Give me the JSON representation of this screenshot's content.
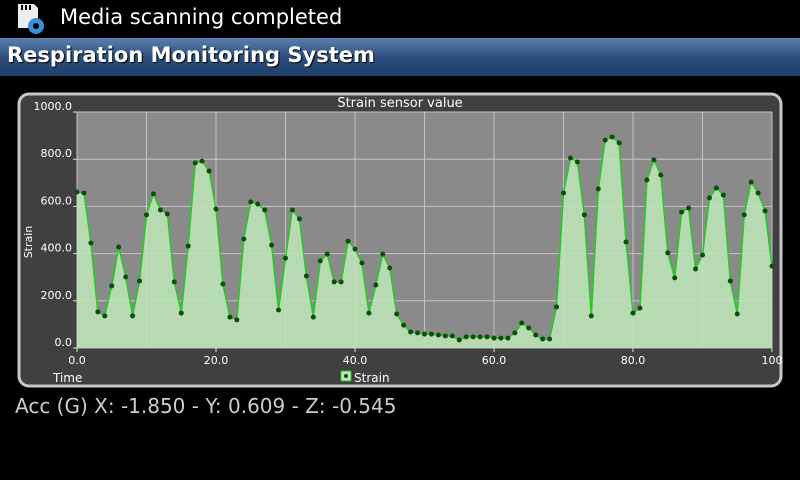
{
  "status_bar": {
    "notification": "Media scanning completed"
  },
  "app_bar": {
    "title": "Respiration Monitoring System"
  },
  "chart_data": {
    "type": "area",
    "title": "Strain sensor value",
    "x_label": "Time",
    "y_label": "Strain",
    "x": [
      0,
      1,
      2,
      3,
      4,
      5,
      6,
      7,
      8,
      9,
      10,
      11,
      12,
      13,
      14,
      15,
      16,
      17,
      18,
      19,
      20,
      21,
      22,
      23,
      24,
      25,
      26,
      27,
      28,
      29,
      30,
      31,
      32,
      33,
      34,
      35,
      36,
      37,
      38,
      39,
      40,
      41,
      42,
      43,
      44,
      45,
      46,
      47,
      48,
      49,
      50,
      51,
      52,
      53,
      54,
      55,
      56,
      57,
      58,
      59,
      60,
      61,
      62,
      63,
      64,
      65,
      66,
      67,
      68,
      69,
      70,
      71,
      72,
      73,
      74,
      75,
      76,
      77,
      78,
      79,
      80,
      81,
      82,
      83,
      84,
      85,
      86,
      87,
      88,
      89,
      90,
      91,
      92,
      93,
      94,
      95,
      96,
      97,
      98,
      99,
      100
    ],
    "series": [
      {
        "name": "Strain",
        "color": "#22cc22",
        "marker_color": "#0f4d0f",
        "fill": "#bfe8b8",
        "values": [
          661,
          657,
          445,
          153,
          136,
          263,
          428,
          301,
          136,
          284,
          564,
          653,
          585,
          568,
          280,
          148,
          432,
          784,
          792,
          750,
          589,
          271,
          131,
          119,
          462,
          619,
          610,
          585,
          436,
          161,
          381,
          585,
          547,
          305,
          131,
          369,
          398,
          280,
          280,
          453,
          419,
          360,
          148,
          267,
          398,
          339,
          144,
          97,
          68,
          64,
          59,
          59,
          55,
          51,
          51,
          34,
          47,
          47,
          47,
          47,
          42,
          42,
          42,
          64,
          106,
          85,
          55,
          38,
          38,
          174,
          657,
          805,
          788,
          564,
          136,
          674,
          881,
          894,
          869,
          449,
          148,
          169,
          712,
          797,
          733,
          403,
          297,
          576,
          593,
          335,
          394,
          636,
          678,
          648,
          284,
          144,
          564,
          703,
          657,
          581,
          347
        ]
      }
    ],
    "xlim": [
      0,
      100
    ],
    "xticks": [
      {
        "value": 0,
        "label": "0.0"
      },
      {
        "value": 20,
        "label": "20.0"
      },
      {
        "value": 40,
        "label": "40.0"
      },
      {
        "value": 60,
        "label": "60.0"
      },
      {
        "value": 80,
        "label": "80.0"
      },
      {
        "value": 100,
        "label": "100"
      }
    ],
    "x_minor_ticks": [
      10,
      30,
      50,
      70,
      90
    ],
    "ylim": [
      0,
      1000
    ],
    "yticks": [
      {
        "value": 0,
        "label": "0.0"
      },
      {
        "value": 200,
        "label": "200.0"
      },
      {
        "value": 400,
        "label": "400.0"
      },
      {
        "value": 600,
        "label": "600.0"
      },
      {
        "value": 800,
        "label": "800.0"
      },
      {
        "value": 1000,
        "label": "1000.0"
      }
    ],
    "grid": true,
    "legend": "bottom"
  },
  "footer": {
    "text": "Acc (G) X: -1.850 - Y: 0.609 - Z: -0.545"
  }
}
